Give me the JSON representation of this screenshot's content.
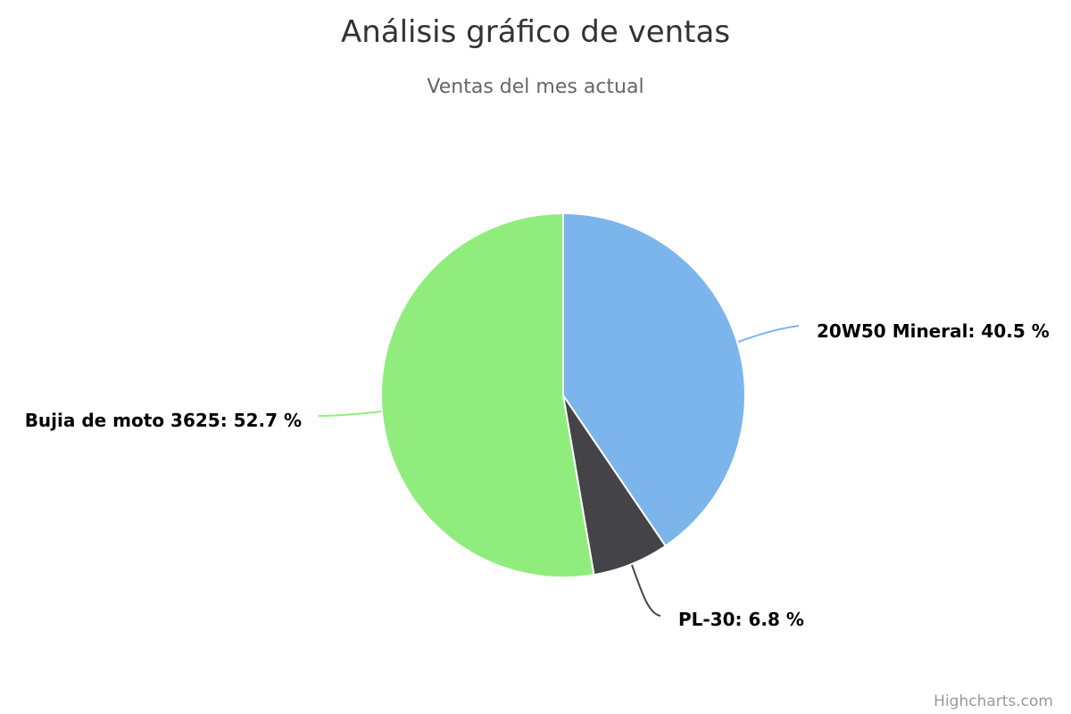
{
  "chart_data": {
    "type": "pie",
    "title": "Análisis gráfico de ventas",
    "subtitle": "Ventas del mes actual",
    "series": [
      {
        "data": [
          {
            "name": "20W50 Mineral",
            "value": 40.5,
            "label": "20W50 Mineral: 40.5 %",
            "color": "#7cb5ec"
          },
          {
            "name": "PL-30",
            "value": 6.8,
            "label": "PL-30: 6.8 %",
            "color": "#434348"
          },
          {
            "name": "Bujia de moto 3625",
            "value": 52.7,
            "label": "Bujia de moto 3625: 52.7 %",
            "color": "#90ed7d"
          }
        ]
      }
    ],
    "credits": "Highcharts.com"
  }
}
